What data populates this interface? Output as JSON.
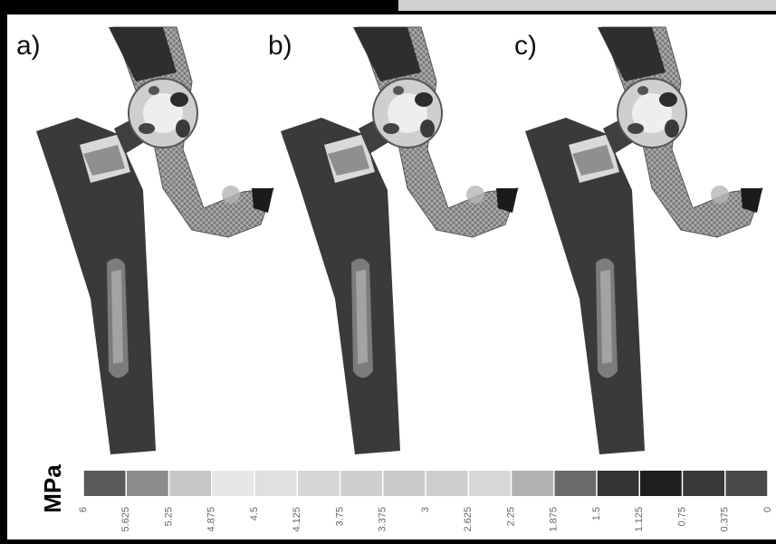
{
  "panels": [
    {
      "label": "a)"
    },
    {
      "label": "b)"
    },
    {
      "label": "c)"
    }
  ],
  "colorbar": {
    "label": "MPa",
    "ticks": [
      6,
      5.625,
      5.25,
      4.875,
      4.5,
      4.125,
      3.75,
      3.375,
      3,
      2.625,
      2.25,
      1.875,
      1.5,
      1.125,
      0.75,
      0.375,
      0
    ],
    "colors": [
      "#5a5a5a",
      "#8c8c8c",
      "#c6c6c6",
      "#e6e6e6",
      "#e0e0e0",
      "#d6d6d6",
      "#cfcfcf",
      "#cacaca",
      "#cecece",
      "#d8d8d8",
      "#b2b2b2",
      "#6a6a6a",
      "#333333",
      "#1e1e1e",
      "#383838",
      "#4a4a4a"
    ]
  }
}
